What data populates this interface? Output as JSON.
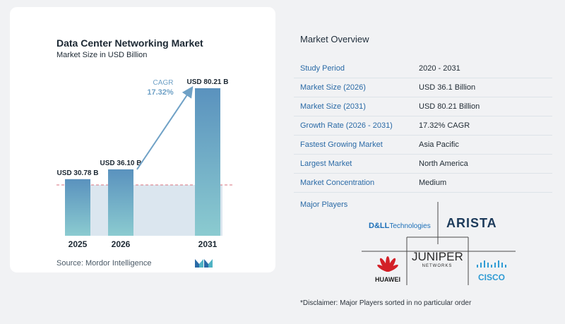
{
  "chart_data": {
    "type": "bar",
    "title": "Data Center Networking Market",
    "subtitle": "Market Size in USD Billion",
    "categories": [
      "2025",
      "2026",
      "2031"
    ],
    "values": [
      30.78,
      36.1,
      80.21
    ],
    "data_labels": [
      "USD 30.78 B",
      "USD 36.10 B",
      "USD 80.21 B"
    ],
    "cagr_label": "CAGR",
    "cagr_value": "17.32%",
    "colors": {
      "bar_top": "#5b93be",
      "bar_bottom": "#8ac9cf",
      "shade": "#dbe6ef",
      "arrow": "#6fa1c6",
      "baseline_dashed": "#d9717d"
    }
  },
  "source": "Source:  Mordor Intelligence",
  "overview": {
    "title": "Market Overview",
    "rows": [
      {
        "label": "Study Period",
        "value": "2020 - 2031"
      },
      {
        "label": "Market Size (2026)",
        "value": "USD 36.1 Billion"
      },
      {
        "label": "Market Size (2031)",
        "value": "USD 80.21 Billion"
      },
      {
        "label": "Growth Rate (2026 - 2031)",
        "value": "17.32% CAGR"
      },
      {
        "label": "Fastest Growing Market",
        "value": "Asia Pacific"
      },
      {
        "label": "Largest Market",
        "value": "North America"
      },
      {
        "label": "Market Concentration",
        "value": "Medium"
      }
    ]
  },
  "players": {
    "title": "Major Players",
    "dell": {
      "brand": "D&LL",
      "suffix": "Technologies"
    },
    "arista": "ARISTA",
    "huawei": "HUAWEI",
    "juniper": {
      "name": "JUNIPER",
      "sub": "NETWORKS"
    },
    "cisco": "CISCO"
  },
  "disclaimer": "*Disclaimer: Major Players sorted in no particular order"
}
